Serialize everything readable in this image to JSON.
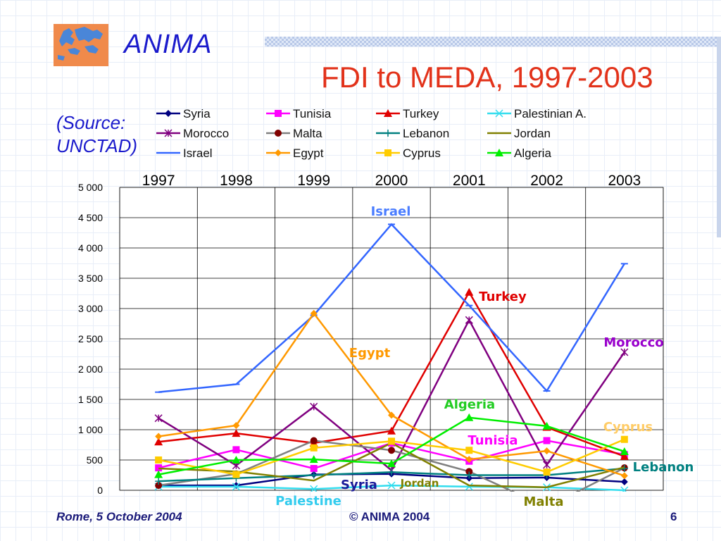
{
  "brand": "ANIMA",
  "title": "FDI to MEDA, 1997-2003",
  "source_line1": "(Source:",
  "source_line2": "UNCTAD)",
  "footer": {
    "left": "Rome, 5 October 2004",
    "center": "©  ANIMA 2004",
    "right": "6"
  },
  "chart_data": {
    "type": "line",
    "title": "",
    "xlabel": "",
    "ylabel": "",
    "categories": [
      "1997",
      "1998",
      "1999",
      "2000",
      "2001",
      "2002",
      "2003"
    ],
    "ylim": [
      0,
      5000
    ],
    "yticks": [
      "0",
      "500",
      "1 000",
      "1 500",
      "2 000",
      "2 500",
      "3 000",
      "3 500",
      "4 000",
      "4 500",
      "5 000"
    ],
    "grid": true,
    "legend_position": "top",
    "series": [
      {
        "name": "Syria",
        "legend": "Syria",
        "color": "#000080",
        "marker": "diamond",
        "values": [
          80,
          80,
          260,
          270,
          200,
          210,
          140
        ]
      },
      {
        "name": "Tunisia",
        "legend": "Tunisia",
        "color": "#ff00ff",
        "marker": "square",
        "values": [
          370,
          670,
          360,
          780,
          480,
          820,
          590
        ]
      },
      {
        "name": "Turkey",
        "legend": "Turkey",
        "color": "#e00000",
        "marker": "triangle",
        "values": [
          800,
          940,
          780,
          980,
          3270,
          1040,
          560
        ]
      },
      {
        "name": "Palestine",
        "legend": "Palestinian A.",
        "color": "#33ddee",
        "marker": "x",
        "values": [
          60,
          60,
          20,
          80,
          60,
          50,
          0
        ]
      },
      {
        "name": "Morocco",
        "legend": "Morocco",
        "color": "#800080",
        "marker": "star",
        "values": [
          1190,
          410,
          1380,
          330,
          2810,
          420,
          2280
        ]
      },
      {
        "name": "Malta",
        "legend": "Malta",
        "color": "#808080",
        "marker": "circle",
        "values": [
          80,
          270,
          820,
          660,
          310,
          -280,
          370
        ]
      },
      {
        "name": "Lebanon",
        "legend": "Lebanon",
        "color": "#008080",
        "marker": "plus",
        "values": [
          150,
          200,
          250,
          300,
          250,
          250,
          360
        ]
      },
      {
        "name": "Jordan",
        "legend": "Jordan",
        "color": "#808000",
        "marker": "none",
        "values": [
          360,
          310,
          160,
          780,
          80,
          50,
          380
        ]
      },
      {
        "name": "Israel",
        "legend": "Israel",
        "color": "#3366ff",
        "marker": "tick",
        "values": [
          1620,
          1750,
          2890,
          4390,
          3050,
          1640,
          3740
        ]
      },
      {
        "name": "Egypt",
        "legend": "Egypt",
        "color": "#ff9900",
        "marker": "diamond",
        "values": [
          890,
          1070,
          2920,
          1240,
          510,
          650,
          240
        ]
      },
      {
        "name": "Cyprus",
        "legend": "Cyprus",
        "color": "#ffcc00",
        "marker": "square",
        "values": [
          500,
          260,
          700,
          810,
          660,
          300,
          840
        ]
      },
      {
        "name": "Algeria",
        "legend": "Algeria",
        "color": "#00ee00",
        "marker": "triangle",
        "values": [
          260,
          500,
          510,
          440,
          1200,
          1060,
          640
        ]
      }
    ],
    "annotations": [
      {
        "text": "Israel",
        "color": "#4a7dff"
      },
      {
        "text": "Turkey",
        "color": "#e00000"
      },
      {
        "text": "Egypt",
        "color": "#ff9900"
      },
      {
        "text": "Morocco",
        "color": "#9900cc"
      },
      {
        "text": "Algeria",
        "color": "#22cc22"
      },
      {
        "text": "Cyprus",
        "color": "#ffcc66"
      },
      {
        "text": "Tunisia",
        "color": "#ff00ff"
      },
      {
        "text": "Lebanon",
        "color": "#008080"
      },
      {
        "text": "Syria",
        "color": "#1a1a99"
      },
      {
        "text": "Jordan",
        "color": "#808000"
      },
      {
        "text": "Palestine",
        "color": "#33ccee"
      },
      {
        "text": "Malta",
        "color": "#808000"
      }
    ]
  }
}
